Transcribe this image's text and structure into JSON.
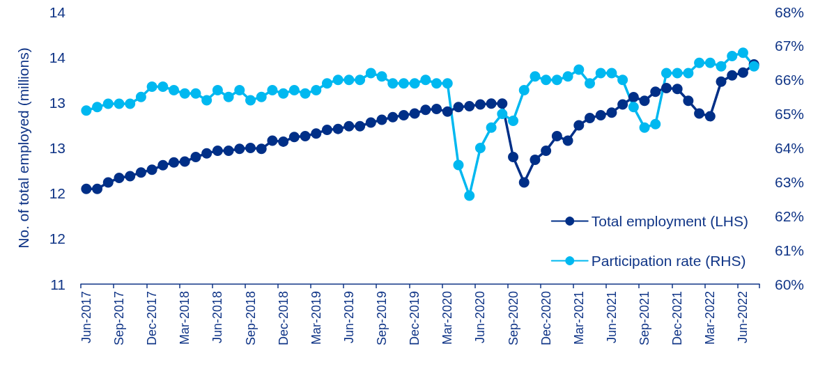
{
  "chart_data": {
    "type": "line",
    "categories": [
      "Jun-2017",
      null,
      null,
      "Sep-2017",
      null,
      null,
      "Dec-2017",
      null,
      null,
      "Mar-2018",
      null,
      null,
      "Jun-2018",
      null,
      null,
      "Sep-2018",
      null,
      null,
      "Dec-2018",
      null,
      null,
      "Mar-2019",
      null,
      null,
      "Jun-2019",
      null,
      null,
      "Sep-2019",
      null,
      null,
      "Dec-2019",
      null,
      null,
      "Mar-2020",
      null,
      null,
      "Jun-2020",
      null,
      null,
      "Sep-2020",
      null,
      null,
      "Dec-2020",
      null,
      null,
      "Mar-2021",
      null,
      null,
      "Jun-2021",
      null,
      null,
      "Sep-2021",
      null,
      null,
      "Dec-2021",
      null,
      null,
      "Mar-2022",
      null,
      null,
      "Jun-2022",
      null
    ],
    "series": [
      {
        "name": "Total employment (LHS)",
        "color": "#002f87",
        "values": [
          12.05,
          12.05,
          12.12,
          12.17,
          12.19,
          12.23,
          12.26,
          12.31,
          12.34,
          12.35,
          12.4,
          12.44,
          12.47,
          12.47,
          12.49,
          12.5,
          12.49,
          12.58,
          12.57,
          12.62,
          12.63,
          12.66,
          12.7,
          12.71,
          12.74,
          12.74,
          12.78,
          12.81,
          12.84,
          12.86,
          12.88,
          12.92,
          12.93,
          12.9,
          12.95,
          12.96,
          12.98,
          12.99,
          12.99,
          12.4,
          12.12,
          12.37,
          12.47,
          12.63,
          12.58,
          12.75,
          12.83,
          12.86,
          12.89,
          12.98,
          13.06,
          13.02,
          13.12,
          13.16,
          13.15,
          13.02,
          12.88,
          12.85,
          13.23,
          13.3,
          13.33,
          13.42
        ]
      },
      {
        "name": "Participation rate (RHS)",
        "color": "#00b8f0",
        "axis": "y2",
        "values": [
          65.1,
          65.2,
          65.3,
          65.3,
          65.3,
          65.5,
          65.8,
          65.8,
          65.7,
          65.6,
          65.6,
          65.4,
          65.7,
          65.5,
          65.7,
          65.4,
          65.5,
          65.7,
          65.6,
          65.7,
          65.6,
          65.7,
          65.9,
          66.0,
          66.0,
          66.0,
          66.2,
          66.1,
          65.9,
          65.9,
          65.9,
          66.0,
          65.9,
          65.9,
          63.5,
          62.6,
          64.0,
          64.6,
          65.0,
          64.8,
          65.7,
          66.1,
          66.0,
          66.0,
          66.1,
          66.3,
          65.9,
          66.2,
          66.2,
          66.0,
          65.2,
          64.6,
          64.7,
          66.2,
          66.2,
          66.2,
          66.5,
          66.5,
          66.4,
          66.7,
          66.8,
          66.4
        ]
      }
    ],
    "ylabel": "No. of total employed (millions)",
    "ylim": [
      11,
      14
    ],
    "yticks": [
      11,
      {
        "value": 11.5,
        "label": "12"
      },
      12,
      {
        "value": 12.5,
        "label": "13"
      },
      13,
      {
        "value": 13.5,
        "label": "14"
      },
      14
    ],
    "y2lim": [
      60,
      68
    ],
    "y2ticks": [
      {
        "value": 60,
        "label": "60%"
      },
      {
        "value": 61,
        "label": "61%"
      },
      {
        "value": 62,
        "label": "62%"
      },
      {
        "value": 63,
        "label": "63%"
      },
      {
        "value": 64,
        "label": "64%"
      },
      {
        "value": 65,
        "label": "65%"
      },
      {
        "value": 66,
        "label": "66%"
      },
      {
        "value": 67,
        "label": "67%"
      },
      {
        "value": 68,
        "label": "68%"
      }
    ],
    "legend": "bottom right",
    "marker": "circle",
    "line_style": "solid",
    "grid": false
  }
}
